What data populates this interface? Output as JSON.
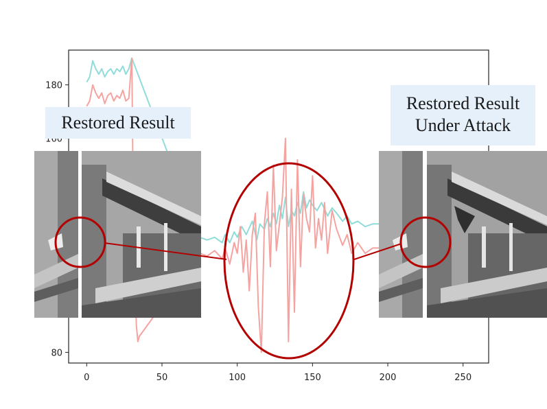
{
  "chart_data": {
    "type": "line",
    "xlim": [
      -12,
      267
    ],
    "ylim": [
      76,
      193
    ],
    "xticks": [
      0,
      50,
      100,
      150,
      200,
      250
    ],
    "yticks": [
      80,
      160,
      180
    ],
    "x_tick_labels": [
      "0",
      "50",
      "100",
      "150",
      "200",
      "250"
    ],
    "y_tick_labels": [
      "80",
      "160",
      "180"
    ],
    "grid": false,
    "series": [
      {
        "color": "#8fdcd8",
        "x": [
          0,
          2,
          4,
          6,
          8,
          10,
          12,
          14,
          16,
          18,
          20,
          22,
          24,
          26,
          28,
          30,
          75,
          80,
          85,
          90,
          92,
          95,
          98,
          100,
          103,
          106,
          110,
          113,
          115,
          118,
          120,
          122,
          124,
          126,
          128,
          130,
          132,
          134,
          136,
          138,
          140,
          142,
          144,
          146,
          148,
          150,
          153,
          156,
          160,
          163,
          166,
          170,
          173,
          176,
          180,
          185,
          190,
          195
        ],
        "y": [
          181,
          183,
          189,
          186,
          184,
          186,
          183,
          185,
          186,
          184,
          186,
          185,
          187,
          184,
          186,
          190,
          123,
          122,
          123,
          121,
          124,
          121,
          125,
          123,
          127,
          124,
          129,
          122,
          128,
          126,
          130,
          127,
          132,
          128,
          135,
          130,
          138,
          127,
          133,
          131,
          136,
          132,
          140,
          134,
          137,
          135,
          133,
          136,
          131,
          134,
          132,
          129,
          131,
          128,
          129,
          127,
          128,
          128
        ]
      },
      {
        "color": "#f5a3a0",
        "x": [
          0,
          2,
          4,
          6,
          8,
          10,
          12,
          14,
          16,
          18,
          20,
          22,
          24,
          26,
          28,
          30,
          31,
          32,
          33,
          34,
          35,
          75,
          80,
          85,
          90,
          92,
          95,
          98,
          100,
          102,
          104,
          106,
          108,
          110,
          112,
          114,
          116,
          118,
          120,
          122,
          124,
          126,
          128,
          130,
          132,
          134,
          136,
          138,
          140,
          142,
          144,
          146,
          148,
          150,
          152,
          154,
          156,
          158,
          160,
          163,
          166,
          170,
          173,
          176,
          180,
          185,
          190,
          195
        ],
        "y": [
          172,
          174,
          180,
          177,
          175,
          177,
          173,
          176,
          177,
          174,
          176,
          175,
          178,
          174,
          175,
          190,
          130,
          110,
          90,
          84,
          86,
          117,
          116,
          118,
          115,
          119,
          113,
          121,
          117,
          127,
          110,
          122,
          103,
          124,
          132,
          97,
          80,
          128,
          140,
          112,
          150,
          118,
          128,
          138,
          160,
          84,
          141,
          95,
          152,
          112,
          139,
          130,
          125,
          146,
          119,
          130,
          122,
          136,
          117,
          133,
          126,
          120,
          124,
          117,
          121,
          117,
          119,
          119
        ]
      }
    ]
  },
  "callouts": {
    "left": [
      "Restored Result"
    ],
    "right": [
      "Restored Result",
      "Under Attack"
    ]
  },
  "colors": {
    "zoom_circle": "#b30000",
    "callout_bg": "#e6f0fb"
  }
}
